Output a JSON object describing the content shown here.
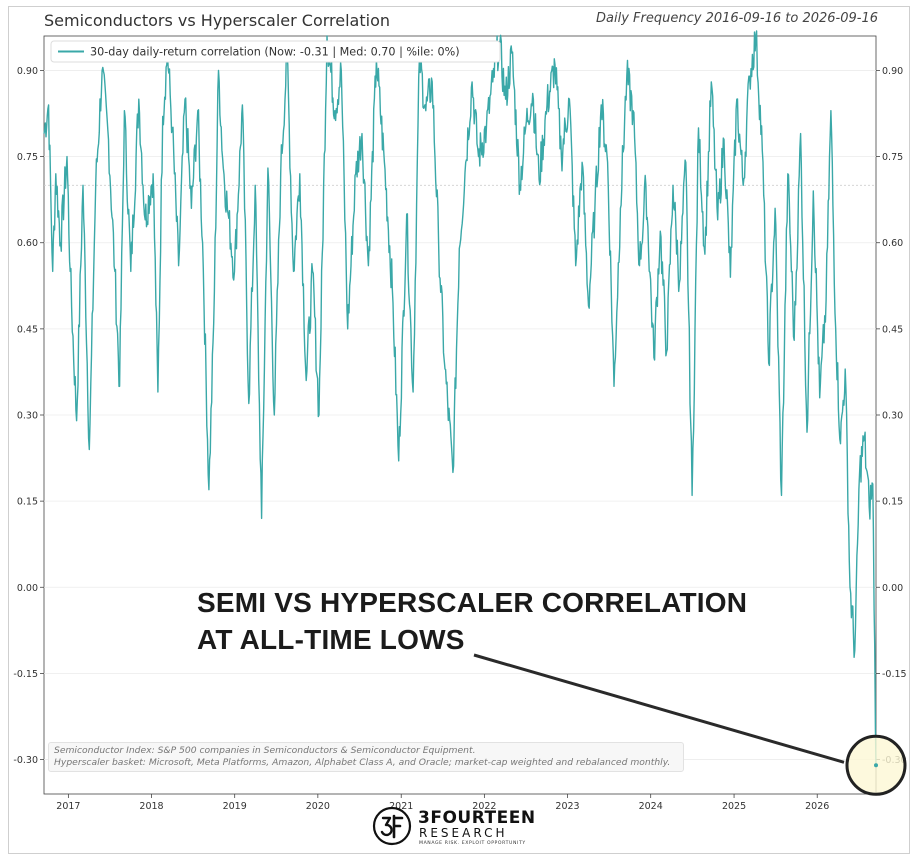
{
  "header": {
    "title": "Semiconductors vs Hyperscaler Correlation",
    "subtitle": "Daily Frequency 2016-09-16 to 2026-09-16"
  },
  "annotation": {
    "line1": "SEMI VS HYPERSCALER CORRELATION",
    "line2": "AT ALL-TIME LOWS"
  },
  "footnote": {
    "line1": "Semiconductor Index: S&P 500 companies in Semiconductors & Semiconductor Equipment.",
    "line2": "Hyperscaler basket: Microsoft, Meta Platforms, Amazon, Alphabet Class A, and Oracle; market-cap weighted and rebalanced monthly."
  },
  "logo": {
    "name": "3FOURTEEN",
    "sub": "RESEARCH",
    "tagline": "MANAGE RISK. EXPLOIT OPPORTUNITY"
  },
  "colors": {
    "series": "#3aa8a8",
    "median_line": "#cfcfcf",
    "highlight_fill": "#fdf8d4",
    "highlight_stroke": "#222222"
  },
  "chart_data": {
    "type": "line",
    "title": "Semiconductors vs Hyperscaler Correlation",
    "subtitle": "Daily Frequency 2016-09-16 to 2026-09-16",
    "xlim": [
      "2016-09-16",
      "2026-09-16"
    ],
    "ylim": [
      -0.36,
      0.96
    ],
    "y_ticks": [
      -0.3,
      -0.15,
      0.0,
      0.15,
      0.3,
      0.45,
      0.6,
      0.75,
      0.9
    ],
    "y_tick_labels": [
      "-0.30",
      "-0.15",
      "0.00",
      "0.15",
      "0.30",
      "0.45",
      "0.60",
      "0.75",
      "0.90"
    ],
    "x_ticks": [
      "2017-01-01",
      "2018-01-01",
      "2019-01-01",
      "2020-01-01",
      "2021-01-01",
      "2022-01-01",
      "2023-01-01",
      "2024-01-01",
      "2025-01-01",
      "2026-01-01"
    ],
    "x_tick_labels": [
      "2017",
      "2018",
      "2019",
      "2020",
      "2021",
      "2022",
      "2023",
      "2024",
      "2025",
      "2026"
    ],
    "y_axis_both_sides": true,
    "grid": true,
    "legend_position": "top-left",
    "median_line": 0.7,
    "highlight": {
      "date": "2026-09-16",
      "value": -0.31
    },
    "series": [
      {
        "name": "30-day daily-return correlation (Now: -0.31 | Med: 0.70 | %ile: 0%)",
        "points": [
          [
            "2016-09-16",
            0.79
          ],
          [
            "2016-10-06",
            0.84
          ],
          [
            "2016-10-24",
            0.55
          ],
          [
            "2016-11-07",
            0.72
          ],
          [
            "2016-11-28",
            0.6
          ],
          [
            "2016-12-26",
            0.75
          ],
          [
            "2017-01-09",
            0.55
          ],
          [
            "2017-02-06",
            0.29
          ],
          [
            "2017-03-06",
            0.7
          ],
          [
            "2017-04-03",
            0.24
          ],
          [
            "2017-05-01",
            0.7
          ],
          [
            "2017-05-29",
            0.9
          ],
          [
            "2017-06-26",
            0.78
          ],
          [
            "2017-07-24",
            0.55
          ],
          [
            "2017-08-14",
            0.35
          ],
          [
            "2017-09-04",
            0.83
          ],
          [
            "2017-10-02",
            0.55
          ],
          [
            "2017-11-06",
            0.85
          ],
          [
            "2017-12-04",
            0.64
          ],
          [
            "2018-01-08",
            0.72
          ],
          [
            "2018-01-29",
            0.34
          ],
          [
            "2018-02-19",
            0.82
          ],
          [
            "2018-03-12",
            0.93
          ],
          [
            "2018-04-02",
            0.8
          ],
          [
            "2018-04-30",
            0.56
          ],
          [
            "2018-05-28",
            0.85
          ],
          [
            "2018-06-25",
            0.66
          ],
          [
            "2018-07-23",
            0.83
          ],
          [
            "2018-08-13",
            0.6
          ],
          [
            "2018-09-10",
            0.17
          ],
          [
            "2018-10-01",
            0.46
          ],
          [
            "2018-10-22",
            0.9
          ],
          [
            "2018-11-12",
            0.73
          ],
          [
            "2018-12-03",
            0.65
          ],
          [
            "2018-12-31",
            0.55
          ],
          [
            "2019-02-04",
            0.84
          ],
          [
            "2019-03-04",
            0.32
          ],
          [
            "2019-04-01",
            0.7
          ],
          [
            "2019-04-29",
            0.12
          ],
          [
            "2019-05-27",
            0.73
          ],
          [
            "2019-06-24",
            0.3
          ],
          [
            "2019-07-22",
            0.72
          ],
          [
            "2019-08-19",
            0.93
          ],
          [
            "2019-09-16",
            0.55
          ],
          [
            "2019-10-14",
            0.72
          ],
          [
            "2019-11-11",
            0.36
          ],
          [
            "2019-12-09",
            0.55
          ],
          [
            "2020-01-06",
            0.3
          ],
          [
            "2020-02-10",
            0.96
          ],
          [
            "2020-03-16",
            0.83
          ],
          [
            "2020-04-13",
            0.9
          ],
          [
            "2020-05-11",
            0.45
          ],
          [
            "2020-06-15",
            0.72
          ],
          [
            "2020-07-13",
            0.79
          ],
          [
            "2020-08-10",
            0.56
          ],
          [
            "2020-09-14",
            0.92
          ],
          [
            "2020-10-19",
            0.74
          ],
          [
            "2020-11-23",
            0.52
          ],
          [
            "2020-12-21",
            0.22
          ],
          [
            "2021-01-25",
            0.65
          ],
          [
            "2021-02-22",
            0.34
          ],
          [
            "2021-03-22",
            0.92
          ],
          [
            "2021-04-19",
            0.83
          ],
          [
            "2021-05-17",
            0.88
          ],
          [
            "2021-06-14",
            0.6
          ],
          [
            "2021-07-12",
            0.38
          ],
          [
            "2021-08-16",
            0.2
          ],
          [
            "2021-09-13",
            0.59
          ],
          [
            "2021-10-11",
            0.74
          ],
          [
            "2021-11-08",
            0.88
          ],
          [
            "2021-12-06",
            0.75
          ],
          [
            "2022-01-10",
            0.8
          ],
          [
            "2022-02-07",
            0.88
          ],
          [
            "2022-03-07",
            0.95
          ],
          [
            "2022-04-04",
            0.85
          ],
          [
            "2022-05-02",
            0.93
          ],
          [
            "2022-06-06",
            0.7
          ],
          [
            "2022-07-04",
            0.81
          ],
          [
            "2022-08-01",
            0.86
          ],
          [
            "2022-08-29",
            0.71
          ],
          [
            "2022-10-03",
            0.84
          ],
          [
            "2022-11-07",
            0.91
          ],
          [
            "2022-12-05",
            0.75
          ],
          [
            "2023-01-09",
            0.85
          ],
          [
            "2023-02-06",
            0.56
          ],
          [
            "2023-03-06",
            0.74
          ],
          [
            "2023-04-03",
            0.49
          ],
          [
            "2023-05-01",
            0.66
          ],
          [
            "2023-05-29",
            0.84
          ],
          [
            "2023-06-26",
            0.74
          ],
          [
            "2023-07-24",
            0.35
          ],
          [
            "2023-08-21",
            0.66
          ],
          [
            "2023-09-18",
            0.89
          ],
          [
            "2023-10-16",
            0.83
          ],
          [
            "2023-11-13",
            0.56
          ],
          [
            "2023-12-11",
            0.7
          ],
          [
            "2024-01-15",
            0.4
          ],
          [
            "2024-02-12",
            0.62
          ],
          [
            "2024-03-11",
            0.41
          ],
          [
            "2024-04-08",
            0.7
          ],
          [
            "2024-05-06",
            0.53
          ],
          [
            "2024-06-03",
            0.74
          ],
          [
            "2024-07-01",
            0.16
          ],
          [
            "2024-07-29",
            0.8
          ],
          [
            "2024-08-26",
            0.58
          ],
          [
            "2024-09-23",
            0.88
          ],
          [
            "2024-10-21",
            0.64
          ],
          [
            "2024-11-18",
            0.78
          ],
          [
            "2024-12-16",
            0.54
          ],
          [
            "2025-01-13",
            0.85
          ],
          [
            "2025-02-10",
            0.7
          ],
          [
            "2025-03-10",
            0.89
          ],
          [
            "2025-04-07",
            0.96
          ],
          [
            "2025-05-05",
            0.76
          ],
          [
            "2025-06-02",
            0.39
          ],
          [
            "2025-06-30",
            0.66
          ],
          [
            "2025-07-28",
            0.16
          ],
          [
            "2025-08-25",
            0.72
          ],
          [
            "2025-09-22",
            0.43
          ],
          [
            "2025-10-20",
            0.79
          ],
          [
            "2025-11-17",
            0.27
          ],
          [
            "2025-12-15",
            0.69
          ],
          [
            "2026-01-12",
            0.33
          ],
          [
            "2026-02-09",
            0.5
          ],
          [
            "2026-03-02",
            0.83
          ],
          [
            "2026-03-23",
            0.45
          ],
          [
            "2026-04-13",
            0.25
          ],
          [
            "2026-05-04",
            0.38
          ],
          [
            "2026-05-25",
            0.0
          ],
          [
            "2026-06-15",
            -0.11
          ],
          [
            "2026-07-06",
            0.2
          ],
          [
            "2026-07-27",
            0.26
          ],
          [
            "2026-08-17",
            0.14
          ],
          [
            "2026-09-02",
            0.18
          ],
          [
            "2026-09-16",
            -0.31
          ]
        ]
      }
    ]
  }
}
